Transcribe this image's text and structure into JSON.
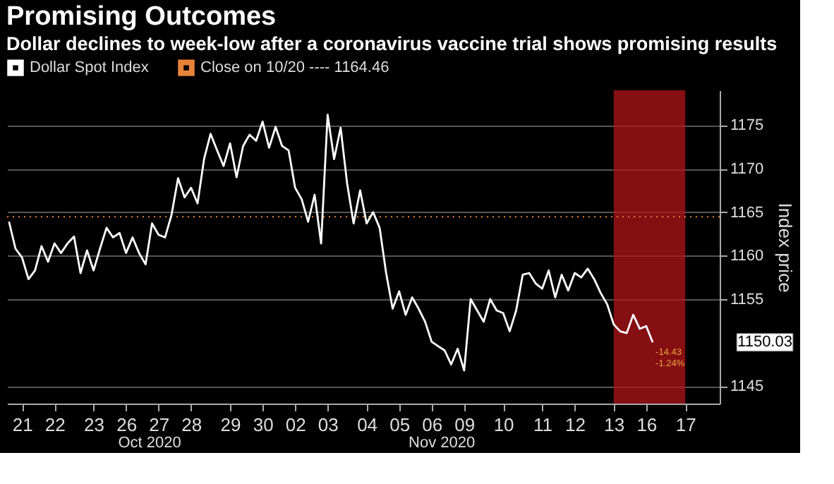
{
  "chart_data": {
    "type": "line",
    "title": "Promising Outcomes",
    "subtitle": "Dollar declines to week-low after a coronavirus vaccine trial shows promising results",
    "ylabel": "Index price",
    "categories": [
      null,
      null,
      "21",
      null,
      null,
      null,
      null,
      "22",
      null,
      null,
      null,
      null,
      null,
      "23",
      null,
      null,
      null,
      null,
      "26",
      null,
      null,
      null,
      null,
      "27",
      null,
      null,
      null,
      null,
      "28",
      null,
      null,
      null,
      null,
      null,
      "29",
      null,
      null,
      null,
      null,
      "30",
      null,
      null,
      null,
      null,
      "02",
      null,
      null,
      null,
      null,
      "03",
      null,
      null,
      null,
      null,
      null,
      "04",
      null,
      null,
      null,
      null,
      "05",
      null,
      null,
      null,
      null,
      "06",
      null,
      null,
      null,
      null,
      "09",
      null,
      null,
      null,
      null,
      null,
      "10",
      null,
      null,
      null,
      null,
      null,
      "11",
      null,
      null,
      null,
      null,
      "12",
      null,
      null,
      null,
      null,
      null,
      "13",
      null,
      null,
      null,
      null,
      "16",
      null,
      null,
      null,
      null,
      null,
      "17",
      null,
      null,
      null,
      null,
      null
    ],
    "ylim": [
      1143,
      1179
    ],
    "yticks": [
      1145,
      1155,
      1160,
      1165,
      1170,
      1175
    ],
    "grid": "y",
    "legend": "top",
    "line_style": "solid",
    "series": [
      {
        "name": "Dollar Spot Index",
        "color": "#ffffff",
        "values": [
          1163.9,
          1160.8,
          1159.8,
          1157.3,
          1158.3,
          1161.1,
          1159.3,
          1161.4,
          1160.3,
          1161.4,
          1162.2,
          1158.0,
          1160.6,
          1158.3,
          1160.8,
          1163.2,
          1162.1,
          1162.6,
          1160.3,
          1162.1,
          1160.3,
          1159.0,
          1163.7,
          1162.4,
          1162.1,
          1164.7,
          1168.9,
          1166.7,
          1167.8,
          1166.0,
          1171.1,
          1174.0,
          1172.1,
          1170.3,
          1172.9,
          1169.0,
          1172.6,
          1173.9,
          1173.2,
          1175.4,
          1172.4,
          1174.8,
          1172.6,
          1172.1,
          1167.8,
          1166.5,
          1163.9,
          1167.0,
          1161.4,
          1176.2,
          1171.1,
          1174.7,
          1168.3,
          1163.7,
          1167.5,
          1163.7,
          1165.0,
          1163.2,
          1158.0,
          1153.9,
          1155.9,
          1153.2,
          1155.2,
          1153.9,
          1152.4,
          1150.1,
          1149.6,
          1149.1,
          1147.5,
          1149.3,
          1146.8,
          1155.0,
          1153.7,
          1152.4,
          1155.0,
          1153.7,
          1153.4,
          1151.3,
          1153.7,
          1157.8,
          1158.0,
          1156.8,
          1156.2,
          1158.3,
          1155.2,
          1157.8,
          1156.0,
          1158.0,
          1157.5,
          1158.5,
          1157.3,
          1155.7,
          1154.4,
          1152.1,
          1151.3,
          1151.1,
          1153.2,
          1151.6,
          1151.9,
          1150.03,
          null,
          null,
          null,
          null,
          null,
          null,
          null,
          null,
          null,
          null
        ]
      }
    ],
    "ref_lines": [
      {
        "axis": "y",
        "value": 1164.46,
        "label": "Close on 10/20 ---- 1164.46",
        "color": "#e8833a",
        "line_style": "dotted"
      }
    ],
    "bands": [
      {
        "axis": "x",
        "from": "13",
        "to": "17",
        "color": "#b3141a"
      }
    ],
    "annotations": [
      "1150.03",
      "-14.43",
      "-1.24%",
      "Oct 2020",
      "Nov 2020"
    ]
  }
}
